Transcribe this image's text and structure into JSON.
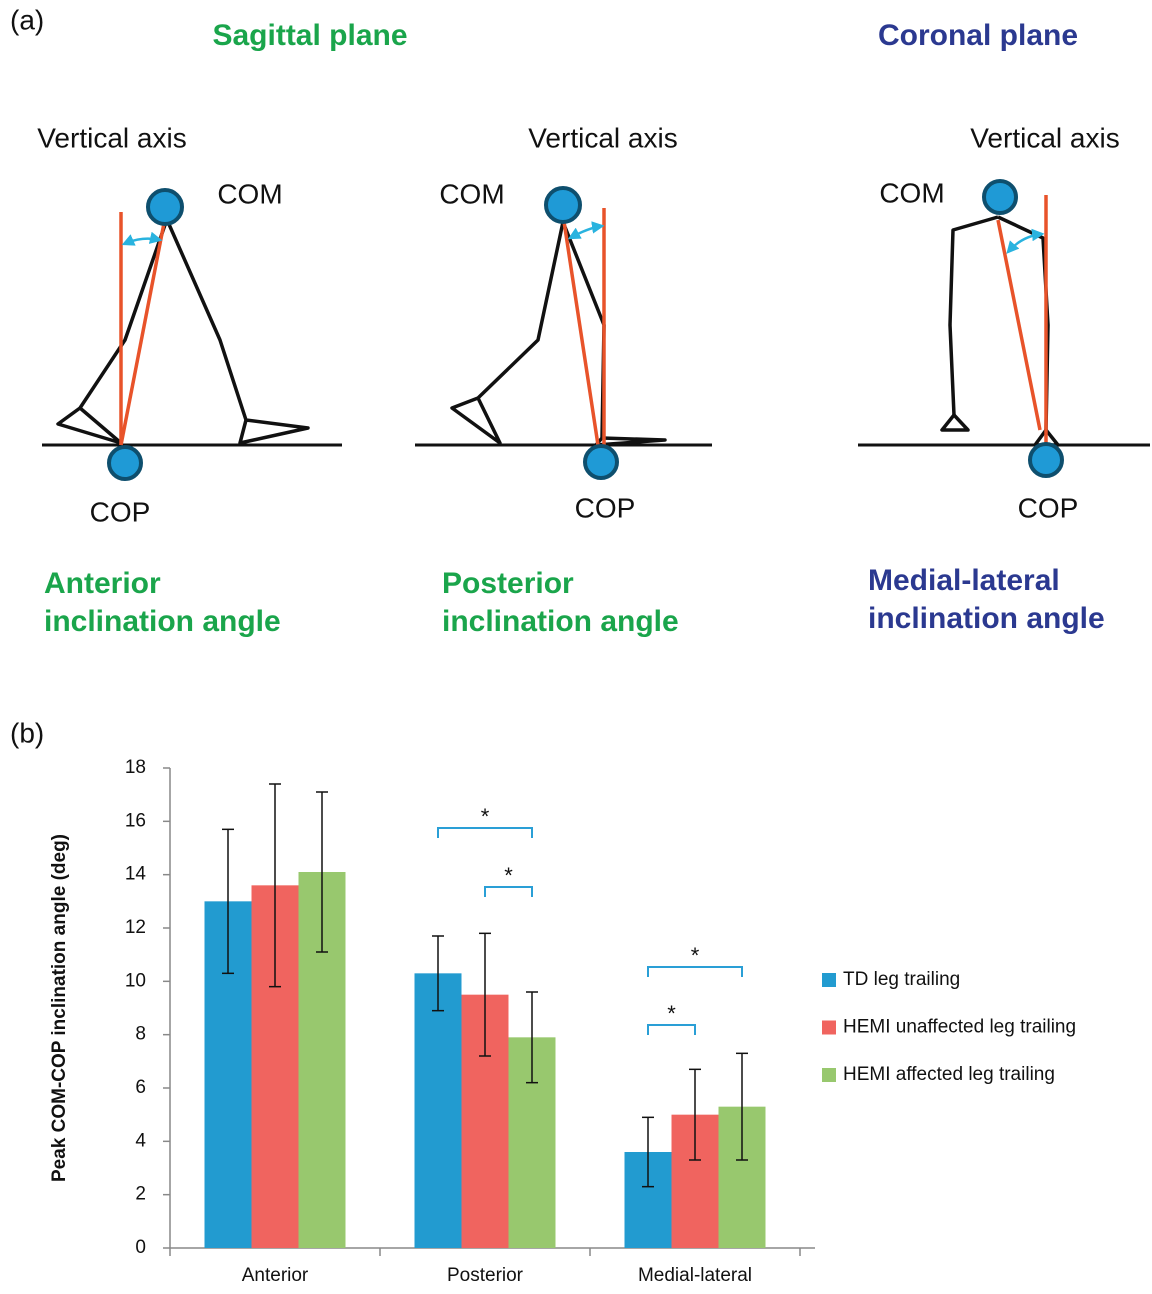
{
  "diagram": {
    "label": "(a)",
    "headings": [
      "Sagittal plane",
      "Coronal plane"
    ],
    "panels": [
      {
        "axis_label": "Vertical axis",
        "com_label": "COM",
        "cop_label": "COP",
        "angle_label": [
          "Anterior",
          "inclination angle"
        ]
      },
      {
        "axis_label": "Vertical axis",
        "com_label": "COM",
        "cop_label": "COP",
        "angle_label": [
          "Posterior",
          "inclination angle"
        ]
      },
      {
        "axis_label": "Vertical axis",
        "com_label": "COM",
        "cop_label": "COP",
        "angle_label": [
          "Medial-lateral",
          "inclination angle"
        ]
      }
    ]
  },
  "chart_data": {
    "type": "bar",
    "panel_label": "(b)",
    "y_label": "Peak COM-COP inclination angle (deg)",
    "categories": [
      "Anterior",
      "Posterior",
      "Medial-lateral"
    ],
    "series": [
      {
        "name": "TD leg trailing",
        "color": "#229bd0",
        "values": [
          13.0,
          10.3,
          3.6
        ],
        "errors": [
          2.7,
          1.4,
          1.3
        ]
      },
      {
        "name": "HEMI unaffected leg trailing",
        "color": "#f0645f",
        "values": [
          13.6,
          9.5,
          5.0
        ],
        "errors": [
          3.8,
          2.3,
          1.7
        ]
      },
      {
        "name": "HEMI affected leg trailing",
        "color": "#98c86e",
        "values": [
          14.1,
          7.9,
          5.3
        ],
        "errors": [
          3.0,
          1.7,
          2.0
        ]
      }
    ],
    "annotations": [
      "*",
      "*",
      "*",
      "*"
    ],
    "ylim": [
      0,
      18
    ],
    "yticks": [
      0,
      2,
      4,
      6,
      8,
      10,
      12,
      14,
      16,
      18
    ],
    "grid": false,
    "legend": "right"
  }
}
